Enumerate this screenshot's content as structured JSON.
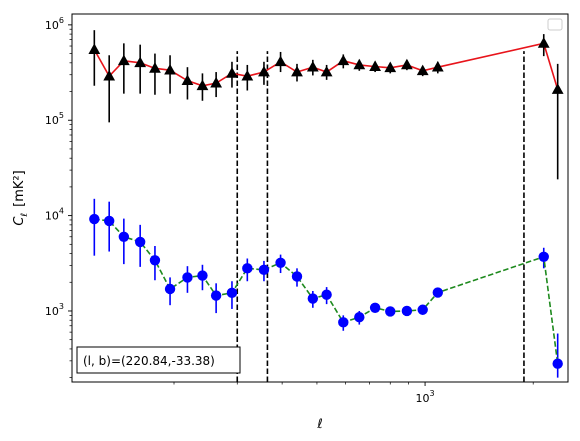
{
  "chart_data": {
    "type": "scatter",
    "title": "",
    "xlabel": "ℓ",
    "ylabel_main": "C",
    "ylabel_sub": "ℓ",
    "ylabel_unit": "[mK²]",
    "xscale": "log",
    "yscale": "log",
    "xlim": [
      104,
      2500
    ],
    "ylim": [
      180,
      1300000
    ],
    "x_ticks": [
      {
        "value": 1000,
        "base": "10",
        "exp": "3"
      }
    ],
    "y_ticks": [
      {
        "value": 1000,
        "base": "10",
        "exp": "3"
      },
      {
        "value": 10000,
        "base": "10",
        "exp": "4"
      },
      {
        "value": 100000,
        "base": "10",
        "exp": "5"
      },
      {
        "value": 1000000,
        "base": "10",
        "exp": "6"
      }
    ],
    "grid": false,
    "legend": {
      "position": "top-right",
      "entries": []
    },
    "annotation": "(l, b)=(220.84,-33.38)",
    "vlines": [
      {
        "x": 300,
        "ymax": 530000
      },
      {
        "x": 364,
        "ymax": 530000
      },
      {
        "x": 1885,
        "ymax": 530000
      }
    ],
    "series": [
      {
        "marker": "triangle",
        "marker_color": "#000000",
        "line_color": "#e8141b",
        "line_style": "solid",
        "errbar_color": "#000000",
        "points": [
          {
            "x": 120,
            "y": 550000,
            "lo": 230000,
            "hi": 880000
          },
          {
            "x": 132,
            "y": 290000,
            "lo": 95000,
            "hi": 480000
          },
          {
            "x": 145,
            "y": 420000,
            "lo": 190000,
            "hi": 640000
          },
          {
            "x": 161,
            "y": 400000,
            "lo": 190000,
            "hi": 620000
          },
          {
            "x": 177,
            "y": 350000,
            "lo": 185000,
            "hi": 500000
          },
          {
            "x": 195,
            "y": 335000,
            "lo": 190000,
            "hi": 480000
          },
          {
            "x": 218,
            "y": 260000,
            "lo": 165000,
            "hi": 360000
          },
          {
            "x": 240,
            "y": 230000,
            "lo": 160000,
            "hi": 310000
          },
          {
            "x": 262,
            "y": 245000,
            "lo": 175000,
            "hi": 320000
          },
          {
            "x": 290,
            "y": 310000,
            "lo": 220000,
            "hi": 410000
          },
          {
            "x": 320,
            "y": 290000,
            "lo": 205000,
            "hi": 380000
          },
          {
            "x": 356,
            "y": 320000,
            "lo": 235000,
            "hi": 410000
          },
          {
            "x": 396,
            "y": 410000,
            "lo": 320000,
            "hi": 520000
          },
          {
            "x": 440,
            "y": 320000,
            "lo": 255000,
            "hi": 390000
          },
          {
            "x": 487,
            "y": 360000,
            "lo": 295000,
            "hi": 430000
          },
          {
            "x": 532,
            "y": 320000,
            "lo": 265000,
            "hi": 380000
          },
          {
            "x": 592,
            "y": 420000,
            "lo": 350000,
            "hi": 490000
          },
          {
            "x": 656,
            "y": 380000,
            "lo": 330000,
            "hi": 430000
          },
          {
            "x": 726,
            "y": 365000,
            "lo": 320000,
            "hi": 410000
          },
          {
            "x": 800,
            "y": 355000,
            "lo": 310000,
            "hi": 400000
          },
          {
            "x": 890,
            "y": 380000,
            "lo": 335000,
            "hi": 425000
          },
          {
            "x": 985,
            "y": 330000,
            "lo": 290000,
            "hi": 370000
          },
          {
            "x": 1085,
            "y": 360000,
            "lo": 310000,
            "hi": 410000
          },
          {
            "x": 2140,
            "y": 640000,
            "lo": 470000,
            "hi": 800000
          },
          {
            "x": 2340,
            "y": 210000,
            "lo": 24000,
            "hi": 390000
          }
        ]
      },
      {
        "marker": "circle",
        "marker_color": "#0000ff",
        "line_color": "#1e8a1e",
        "line_style": "dashed",
        "errbar_color": "#0000ff",
        "points": [
          {
            "x": 120,
            "y": 9200,
            "lo": 3800,
            "hi": 15000
          },
          {
            "x": 132,
            "y": 8800,
            "lo": 4200,
            "hi": 14000
          },
          {
            "x": 145,
            "y": 6000,
            "lo": 3100,
            "hi": 9300
          },
          {
            "x": 161,
            "y": 5300,
            "lo": 2900,
            "hi": 8000
          },
          {
            "x": 177,
            "y": 3400,
            "lo": 2100,
            "hi": 4800
          },
          {
            "x": 195,
            "y": 1700,
            "lo": 1150,
            "hi": 2250
          },
          {
            "x": 218,
            "y": 2250,
            "lo": 1550,
            "hi": 2950
          },
          {
            "x": 240,
            "y": 2350,
            "lo": 1650,
            "hi": 3050
          },
          {
            "x": 262,
            "y": 1450,
            "lo": 950,
            "hi": 1950
          },
          {
            "x": 290,
            "y": 1550,
            "lo": 1050,
            "hi": 2050
          },
          {
            "x": 320,
            "y": 2800,
            "lo": 2050,
            "hi": 3550
          },
          {
            "x": 356,
            "y": 2700,
            "lo": 2050,
            "hi": 3350
          },
          {
            "x": 396,
            "y": 3200,
            "lo": 2500,
            "hi": 3900
          },
          {
            "x": 440,
            "y": 2300,
            "lo": 1800,
            "hi": 2800
          },
          {
            "x": 487,
            "y": 1350,
            "lo": 1080,
            "hi": 1620
          },
          {
            "x": 532,
            "y": 1480,
            "lo": 1180,
            "hi": 1780
          },
          {
            "x": 592,
            "y": 760,
            "lo": 620,
            "hi": 900
          },
          {
            "x": 656,
            "y": 860,
            "lo": 720,
            "hi": 1000
          },
          {
            "x": 726,
            "y": 1080,
            "lo": 970,
            "hi": 1190
          },
          {
            "x": 800,
            "y": 990,
            "lo": 890,
            "hi": 1090
          },
          {
            "x": 890,
            "y": 1000,
            "lo": 900,
            "hi": 1100
          },
          {
            "x": 985,
            "y": 1030,
            "lo": 920,
            "hi": 1140
          },
          {
            "x": 1085,
            "y": 1560,
            "lo": 1400,
            "hi": 1720
          },
          {
            "x": 2140,
            "y": 3700,
            "lo": 2800,
            "hi": 4600
          },
          {
            "x": 2340,
            "y": 280,
            "lo": 200,
            "hi": 580
          }
        ]
      }
    ]
  }
}
